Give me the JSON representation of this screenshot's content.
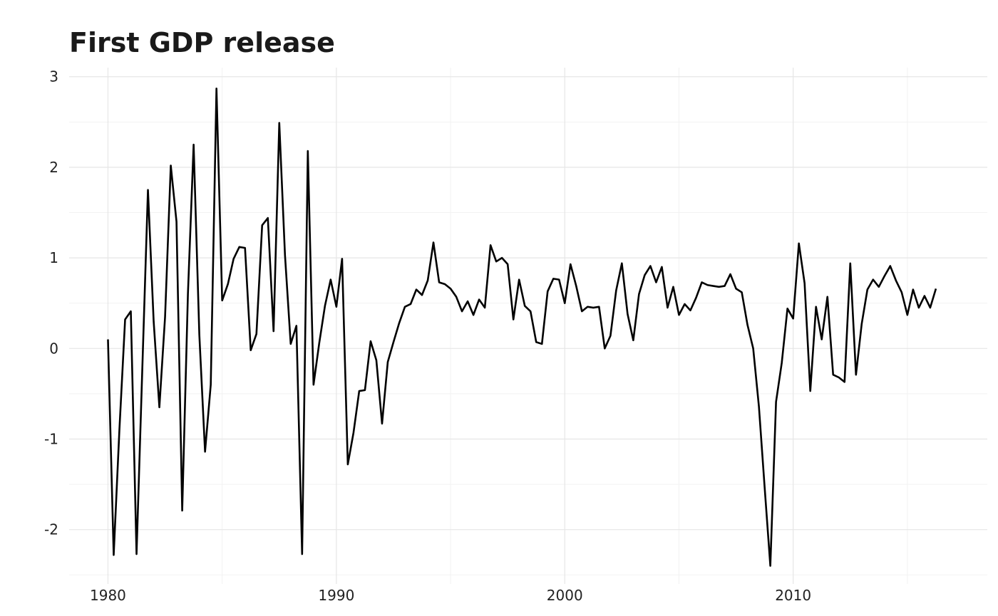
{
  "chart_data": {
    "type": "line",
    "title": "First GDP release",
    "xlabel": "",
    "ylabel": "",
    "xlim": [
      1978.3,
      2018.5
    ],
    "ylim": [
      -2.6,
      3.1
    ],
    "x_ticks": [
      1980,
      1990,
      2000,
      2010
    ],
    "x_tick_labels": [
      "1980",
      "1990",
      "2000",
      "2010"
    ],
    "y_ticks": [
      3,
      2,
      1,
      0,
      -1,
      -2
    ],
    "y_tick_labels": [
      "3",
      "2",
      "1",
      "0",
      "-1",
      "-2"
    ],
    "grid": true,
    "legend": "none",
    "line_color": "#000000",
    "series": [
      {
        "x_start": 1980.0,
        "x_step": 0.25,
        "values": [
          0.1,
          -2.28,
          -0.9,
          0.32,
          0.41,
          -2.27,
          -0.25,
          1.75,
          0.3,
          -0.65,
          0.35,
          2.02,
          1.4,
          -1.79,
          0.6,
          2.25,
          0.15,
          -1.14,
          -0.4,
          2.87,
          0.53,
          0.71,
          0.99,
          1.12,
          1.11,
          -0.02,
          0.16,
          1.36,
          1.44,
          0.19,
          2.49,
          1.03,
          0.05,
          0.25,
          -2.27,
          2.18,
          -0.4,
          0.06,
          0.47,
          0.76,
          0.46,
          0.99,
          -1.28,
          -0.93,
          -0.47,
          -0.46,
          0.08,
          -0.13,
          -0.83,
          -0.15,
          0.07,
          0.28,
          0.46,
          0.49,
          0.65,
          0.59,
          0.75,
          1.17,
          0.73,
          0.71,
          0.66,
          0.57,
          0.41,
          0.52,
          0.37,
          0.54,
          0.45,
          1.14,
          0.96,
          1.0,
          0.93,
          0.32,
          0.76,
          0.47,
          0.41,
          0.07,
          0.05,
          0.63,
          0.77,
          0.76,
          0.5,
          0.93,
          0.69,
          0.41,
          0.46,
          0.45,
          0.46,
          0.0,
          0.14,
          0.64,
          0.94,
          0.38,
          0.09,
          0.6,
          0.81,
          0.91,
          0.73,
          0.9,
          0.45,
          0.68,
          0.37,
          0.49,
          0.42,
          0.56,
          0.73,
          0.7,
          0.69,
          0.68,
          0.69,
          0.82,
          0.66,
          0.62,
          0.26,
          0.0,
          -0.64,
          -1.53,
          -2.4,
          -0.59,
          -0.16,
          0.44,
          0.33,
          1.16,
          0.72,
          -0.47,
          0.46,
          0.1,
          0.57,
          -0.29,
          -0.32,
          -0.37,
          0.94,
          -0.29,
          0.27,
          0.65,
          0.76,
          0.68,
          0.8,
          0.91,
          0.75,
          0.62,
          0.37,
          0.65,
          0.45,
          0.58,
          0.45,
          0.66
        ]
      }
    ]
  }
}
